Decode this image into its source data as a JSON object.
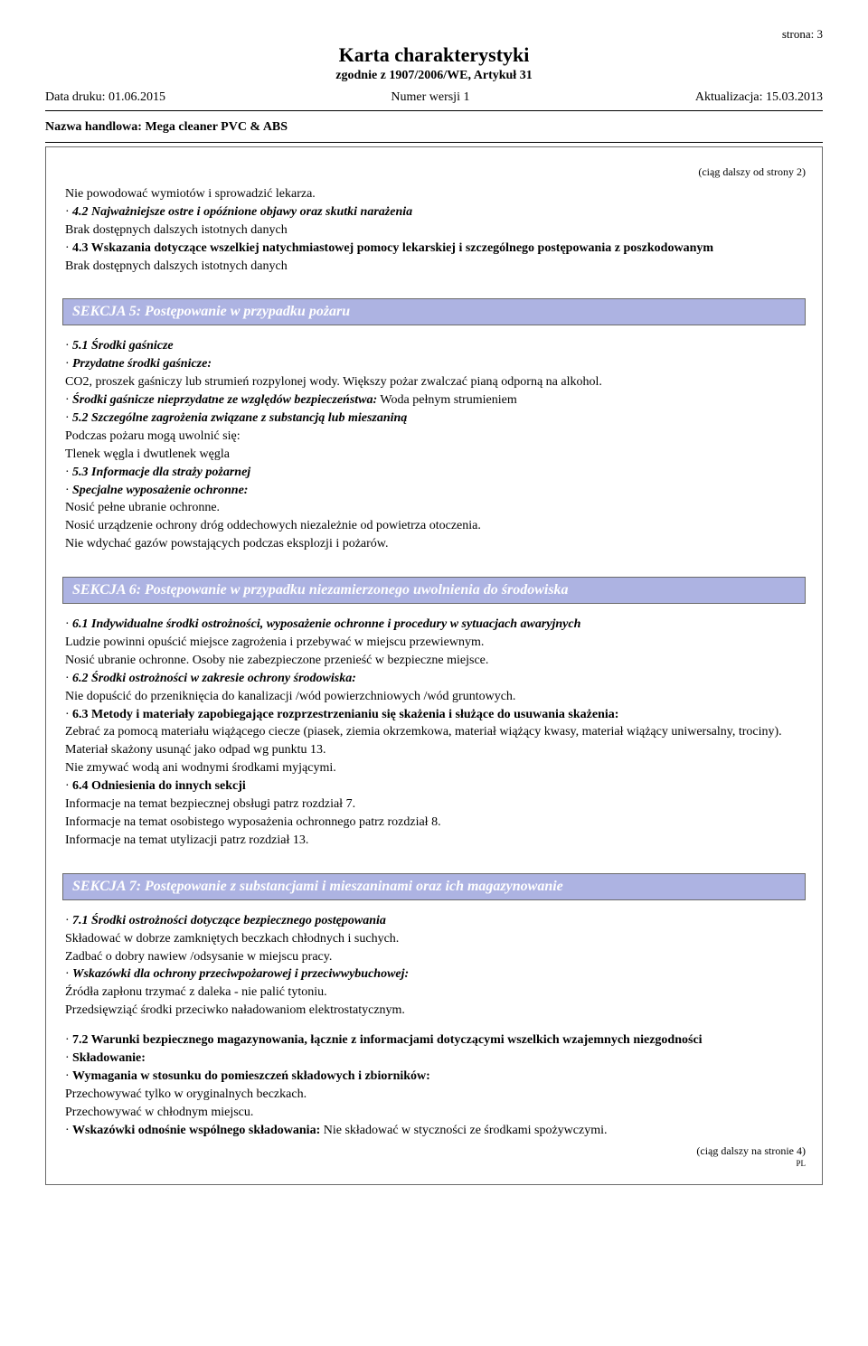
{
  "header": {
    "page_label": "strona: 3",
    "title": "Karta charakterystyki",
    "subtitle": "zgodnie z 1907/2006/WE, Artykuł 31",
    "print_date": "Data druku: 01.06.2015",
    "version": "Numer wersji 1",
    "update": "Aktualizacja: 15.03.2013",
    "trade_name": "Nazwa handlowa: Mega cleaner PVC & ABS"
  },
  "cont_from": "(ciąg dalszy od strony 2)",
  "pre_block": {
    "l1": "Nie powodować wymiotów i sprowadzić lekarza.",
    "l2": "4.2 Najważniejsze ostre i opóźnione objawy oraz skutki narażenia",
    "l3": "Brak dostępnych dalszych istotnych danych",
    "l4": "4.3 Wskazania dotyczące wszelkiej natychmiastowej pomocy lekarskiej i szczególnego postępowania z poszkodowanym",
    "l5": "Brak dostępnych dalszych istotnych danych"
  },
  "sec5": {
    "title": "SEKCJA 5: Postępowanie w przypadku pożaru",
    "l1": "5.1 Środki gaśnicze",
    "l2": "Przydatne środki gaśnicze:",
    "l3": "CO2, proszek gaśniczy lub strumień rozpylonej wody. Większy pożar zwalczać pianą odporną na alkohol.",
    "l4a": "Środki gaśnicze nieprzydatne ze względów bezpieczeństwa:",
    "l4b": " Woda pełnym strumieniem",
    "l5": "5.2 Szczególne zagrożenia związane z substancją lub mieszaniną",
    "l6": "Podczas pożaru mogą uwolnić się:",
    "l7": "Tlenek węgla i dwutlenek węgla",
    "l8": "5.3 Informacje dla straży pożarnej",
    "l9": "Specjalne wyposażenie ochronne:",
    "l10": "Nosić pełne ubranie ochronne.",
    "l11": "Nosić urządzenie ochrony dróg oddechowych niezależnie od powietrza otoczenia.",
    "l12": "Nie wdychać gazów powstających podczas eksplozji i pożarów."
  },
  "sec6": {
    "title": "SEKCJA 6: Postępowanie w przypadku niezamierzonego uwolnienia do środowiska",
    "l1": "6.1 Indywidualne środki ostrożności, wyposażenie ochronne i procedury w sytuacjach awaryjnych",
    "l2": "Ludzie powinni opuścić miejsce zagrożenia i przebywać w miejscu przewiewnym.",
    "l3": "Nosić ubranie ochronne. Osoby nie zabezpieczone przenieść w bezpieczne miejsce.",
    "l4": "6.2 Środki ostrożności w zakresie ochrony środowiska:",
    "l5": "Nie dopuścić do przeniknięcia do kanalizacji /wód powierzchniowych /wód gruntowych.",
    "l6": "6.3 Metody i materiały zapobiegające rozprzestrzenianiu się skażenia i służące do usuwania skażenia:",
    "l7": "Zebrać za pomocą materiału wiążącego ciecze (piasek, ziemia okrzemkowa, materiał wiążący kwasy, materiał wiążący uniwersalny, trociny).",
    "l8": "Materiał skażony usunąć jako odpad wg punktu 13.",
    "l9": "Nie zmywać wodą ani wodnymi środkami myjącymi.",
    "l10": "6.4 Odniesienia do innych sekcji",
    "l11": "Informacje na temat bezpiecznej obsługi patrz rozdział 7.",
    "l12": "Informacje na temat osobistego wyposażenia ochronnego patrz rozdział 8.",
    "l13": "Informacje na temat utylizacji patrz rozdział 13."
  },
  "sec7": {
    "title": "SEKCJA 7: Postępowanie z substancjami i mieszaninami oraz ich magazynowanie",
    "l1": "7.1 Środki ostrożności dotyczące bezpiecznego postępowania",
    "l2": "Składować w dobrze zamkniętych beczkach chłodnych i suchych.",
    "l3": "Zadbać o dobry nawiew /odsysanie w miejscu pracy.",
    "l4": "Wskazówki dla ochrony przeciwpożarowej i przeciwwybuchowej:",
    "l5": "Źródła zapłonu trzymać z daleka - nie palić tytoniu.",
    "l6": "Przedsięwziąć środki przeciwko naładowaniom elektrostatycznym.",
    "l7": "7.2 Warunki bezpiecznego magazynowania, łącznie z informacjami dotyczącymi wszelkich wzajemnych niezgodności",
    "l8": "Składowanie:",
    "l9": "Wymagania w stosunku do pomieszczeń składowych i zbiorników:",
    "l10": "Przechowywać tylko w oryginalnych beczkach.",
    "l11": "Przechowywać w chłodnym miejscu.",
    "l12a": "Wskazówki odnośnie wspólnego składowania:",
    "l12b": " Nie składować w styczności ze środkami spożywczymi."
  },
  "cont_to": "(ciąg dalszy na stronie 4)",
  "footer_tiny": "PL"
}
